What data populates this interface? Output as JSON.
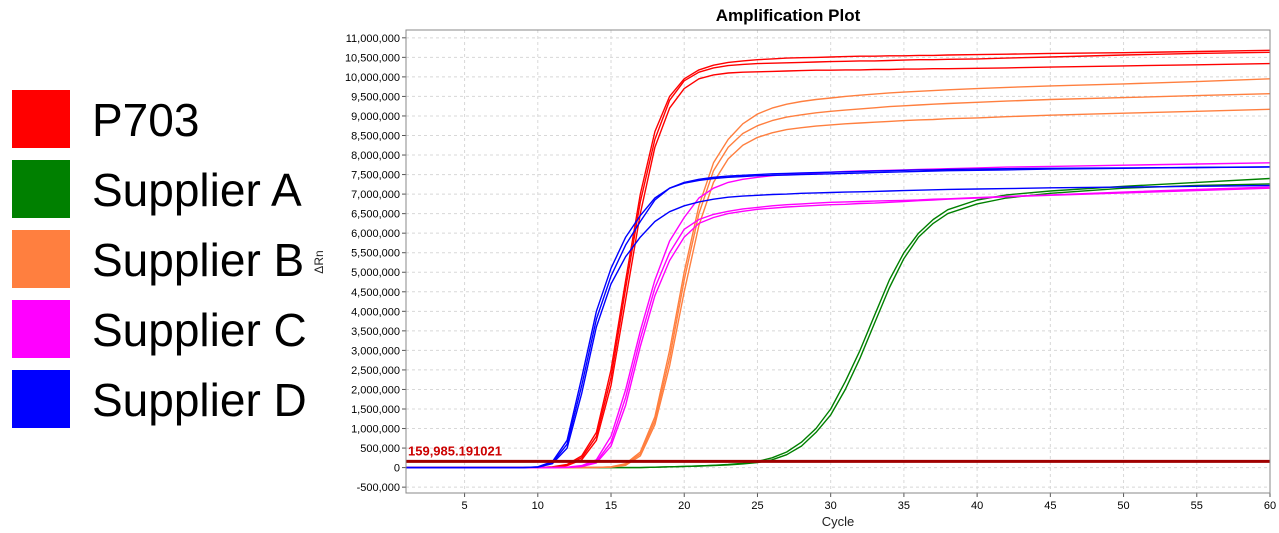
{
  "legend": {
    "items": [
      {
        "label": "P703",
        "color": "#ff0000"
      },
      {
        "label": "Supplier A",
        "color": "#008000"
      },
      {
        "label": "Supplier B",
        "color": "#ff7f3f"
      },
      {
        "label": "Supplier C",
        "color": "#ff00ff"
      },
      {
        "label": "Supplier D",
        "color": "#0000ff"
      }
    ]
  },
  "chart_data": {
    "type": "line",
    "title": "Amplification Plot",
    "xlabel": "Cycle",
    "ylabel": "ΔRn",
    "xlim": [
      1,
      60
    ],
    "ylim": [
      -650000,
      11200000
    ],
    "x_ticks": [
      5,
      10,
      15,
      20,
      25,
      30,
      35,
      40,
      45,
      50,
      55,
      60
    ],
    "x_tick_labels": [
      "5",
      "10",
      "15",
      "20",
      "25",
      "30",
      "35",
      "40",
      "45",
      "50",
      "55",
      "60"
    ],
    "y_ticks": [
      -500000,
      0,
      500000,
      1000000,
      1500000,
      2000000,
      2500000,
      3000000,
      3500000,
      4000000,
      4500000,
      5000000,
      5500000,
      6000000,
      6500000,
      7000000,
      7500000,
      8000000,
      8500000,
      9000000,
      9500000,
      10000000,
      10500000,
      11000000
    ],
    "y_tick_labels": [
      "-500,000",
      "0",
      "500,000",
      "1,000,000",
      "1,500,000",
      "2,000,000",
      "2,500,000",
      "3,000,000",
      "3,500,000",
      "4,000,000",
      "4,500,000",
      "5,000,000",
      "5,500,000",
      "6,000,000",
      "6,500,000",
      "7,000,000",
      "7,500,000",
      "8,000,000",
      "8,500,000",
      "9,000,000",
      "9,500,000",
      "10,000,000",
      "10,500,000",
      "11,000,000"
    ],
    "grid": true,
    "threshold": {
      "value": 159985.191021,
      "label": "159,985.191021",
      "color": "#a00000"
    },
    "x": [
      1,
      3,
      5,
      7,
      9,
      10,
      11,
      12,
      13,
      14,
      15,
      16,
      17,
      18,
      19,
      20,
      21,
      22,
      23,
      24,
      25,
      26,
      27,
      28,
      29,
      30,
      31,
      32,
      33,
      34,
      35,
      36,
      37,
      38,
      40,
      42,
      45,
      50,
      55,
      60
    ],
    "series": [
      {
        "group": "P703",
        "color": "#ff0000",
        "values": [
          0,
          0,
          0,
          0,
          0,
          0,
          20000,
          80000,
          300000,
          900000,
          2500000,
          4800000,
          7000000,
          8600000,
          9500000,
          9950000,
          10180000,
          10300000,
          10370000,
          10410000,
          10440000,
          10460000,
          10480000,
          10490000,
          10500000,
          10510000,
          10520000,
          10530000,
          10530000,
          10540000,
          10540000,
          10550000,
          10550000,
          10560000,
          10570000,
          10580000,
          10600000,
          10620000,
          10650000,
          10680000
        ]
      },
      {
        "group": "P703",
        "color": "#ff0000",
        "values": [
          0,
          0,
          0,
          0,
          0,
          0,
          15000,
          60000,
          250000,
          800000,
          2300000,
          4600000,
          6800000,
          8400000,
          9400000,
          9900000,
          10120000,
          10230000,
          10290000,
          10320000,
          10340000,
          10350000,
          10360000,
          10370000,
          10380000,
          10390000,
          10400000,
          10410000,
          10410000,
          10420000,
          10430000,
          10440000,
          10440000,
          10450000,
          10460000,
          10480000,
          10510000,
          10560000,
          10600000,
          10630000
        ]
      },
      {
        "group": "P703",
        "color": "#ff0000",
        "values": [
          0,
          0,
          0,
          0,
          0,
          0,
          10000,
          50000,
          200000,
          700000,
          2100000,
          4300000,
          6500000,
          8200000,
          9200000,
          9700000,
          9950000,
          10050000,
          10100000,
          10120000,
          10130000,
          10140000,
          10150000,
          10160000,
          10170000,
          10170000,
          10180000,
          10180000,
          10190000,
          10190000,
          10200000,
          10200000,
          10210000,
          10210000,
          10220000,
          10230000,
          10250000,
          10280000,
          10310000,
          10340000
        ]
      },
      {
        "group": "Supplier A",
        "color": "#008000",
        "values": [
          0,
          0,
          0,
          0,
          0,
          0,
          0,
          0,
          0,
          0,
          0,
          0,
          0,
          10000,
          20000,
          30000,
          40000,
          60000,
          80000,
          110000,
          160000,
          250000,
          400000,
          650000,
          1000000,
          1500000,
          2200000,
          3000000,
          3900000,
          4800000,
          5500000,
          6000000,
          6350000,
          6600000,
          6850000,
          6980000,
          7080000,
          7200000,
          7300000,
          7400000
        ]
      },
      {
        "group": "Supplier A",
        "color": "#008000",
        "values": [
          0,
          0,
          0,
          0,
          0,
          0,
          0,
          0,
          0,
          0,
          0,
          0,
          0,
          10000,
          20000,
          30000,
          40000,
          55000,
          70000,
          95000,
          130000,
          200000,
          330000,
          550000,
          900000,
          1350000,
          2000000,
          2800000,
          3700000,
          4600000,
          5350000,
          5900000,
          6250000,
          6500000,
          6750000,
          6900000,
          7020000,
          7150000,
          7220000,
          7260000
        ]
      },
      {
        "group": "Supplier B",
        "color": "#ff7f3f",
        "values": [
          0,
          0,
          0,
          0,
          0,
          0,
          0,
          0,
          0,
          5000,
          20000,
          100000,
          400000,
          1300000,
          3000000,
          5000000,
          6700000,
          7800000,
          8400000,
          8800000,
          9050000,
          9200000,
          9300000,
          9370000,
          9420000,
          9460000,
          9500000,
          9530000,
          9560000,
          9590000,
          9610000,
          9630000,
          9650000,
          9670000,
          9700000,
          9730000,
          9770000,
          9820000,
          9880000,
          9950000
        ]
      },
      {
        "group": "Supplier B",
        "color": "#ff7f3f",
        "values": [
          0,
          0,
          0,
          0,
          0,
          0,
          0,
          0,
          0,
          5000,
          15000,
          80000,
          350000,
          1200000,
          2800000,
          4800000,
          6500000,
          7600000,
          8200000,
          8550000,
          8750000,
          8880000,
          8970000,
          9030000,
          9080000,
          9120000,
          9150000,
          9180000,
          9210000,
          9240000,
          9260000,
          9280000,
          9300000,
          9320000,
          9350000,
          9380000,
          9420000,
          9470000,
          9520000,
          9570000
        ]
      },
      {
        "group": "Supplier B",
        "color": "#ff7f3f",
        "values": [
          0,
          0,
          0,
          0,
          0,
          0,
          0,
          0,
          0,
          5000,
          10000,
          60000,
          300000,
          1100000,
          2600000,
          4500000,
          6200000,
          7300000,
          7900000,
          8250000,
          8450000,
          8570000,
          8650000,
          8700000,
          8740000,
          8770000,
          8800000,
          8820000,
          8840000,
          8860000,
          8880000,
          8900000,
          8910000,
          8930000,
          8950000,
          8980000,
          9020000,
          9070000,
          9120000,
          9170000
        ]
      },
      {
        "group": "Supplier C",
        "color": "#ff00ff",
        "values": [
          0,
          0,
          0,
          0,
          0,
          0,
          0,
          10000,
          50000,
          200000,
          800000,
          2000000,
          3500000,
          4800000,
          5800000,
          6400000,
          6900000,
          7150000,
          7300000,
          7380000,
          7430000,
          7470000,
          7500000,
          7520000,
          7540000,
          7560000,
          7580000,
          7590000,
          7600000,
          7610000,
          7620000,
          7630000,
          7640000,
          7650000,
          7670000,
          7690000,
          7710000,
          7740000,
          7770000,
          7800000
        ]
      },
      {
        "group": "Supplier C",
        "color": "#ff00ff",
        "values": [
          0,
          0,
          0,
          0,
          0,
          0,
          0,
          5000,
          30000,
          150000,
          650000,
          1800000,
          3300000,
          4600000,
          5500000,
          6100000,
          6350000,
          6480000,
          6560000,
          6620000,
          6660000,
          6700000,
          6730000,
          6750000,
          6770000,
          6790000,
          6800000,
          6810000,
          6820000,
          6830000,
          6840000,
          6850000,
          6870000,
          6880000,
          6910000,
          6940000,
          6980000,
          7050000,
          7120000,
          7180000
        ]
      },
      {
        "group": "Supplier C",
        "color": "#ff00ff",
        "values": [
          0,
          0,
          0,
          0,
          0,
          0,
          0,
          5000,
          25000,
          120000,
          550000,
          1600000,
          3100000,
          4400000,
          5300000,
          5900000,
          6250000,
          6400000,
          6500000,
          6560000,
          6610000,
          6640000,
          6670000,
          6690000,
          6710000,
          6730000,
          6740000,
          6760000,
          6770000,
          6790000,
          6810000,
          6830000,
          6850000,
          6870000,
          6900000,
          6930000,
          6970000,
          7030000,
          7090000,
          7150000
        ]
      },
      {
        "group": "Supplier D",
        "color": "#0000ff",
        "values": [
          0,
          0,
          0,
          0,
          0,
          20000,
          150000,
          700000,
          2300000,
          4000000,
          5100000,
          5900000,
          6450000,
          6900000,
          7150000,
          7280000,
          7350000,
          7400000,
          7430000,
          7450000,
          7470000,
          7480000,
          7490000,
          7500000,
          7510000,
          7520000,
          7530000,
          7540000,
          7550000,
          7560000,
          7570000,
          7580000,
          7590000,
          7600000,
          7610000,
          7620000,
          7640000,
          7660000,
          7680000,
          7700000
        ]
      },
      {
        "group": "Supplier D",
        "color": "#0000ff",
        "values": [
          0,
          0,
          0,
          0,
          0,
          15000,
          120000,
          600000,
          2100000,
          3800000,
          4900000,
          5700000,
          6300000,
          6850000,
          7150000,
          7300000,
          7380000,
          7430000,
          7460000,
          7480000,
          7500000,
          7520000,
          7530000,
          7540000,
          7550000,
          7560000,
          7570000,
          7580000,
          7590000,
          7600000,
          7610000,
          7620000,
          7620000,
          7630000,
          7640000,
          7650000,
          7660000,
          7670000,
          7680000,
          7690000
        ]
      },
      {
        "group": "Supplier D",
        "color": "#0000ff",
        "values": [
          0,
          0,
          0,
          0,
          0,
          10000,
          100000,
          500000,
          1900000,
          3600000,
          4700000,
          5400000,
          5900000,
          6300000,
          6550000,
          6700000,
          6800000,
          6870000,
          6920000,
          6950000,
          6970000,
          6990000,
          7000000,
          7020000,
          7030000,
          7040000,
          7050000,
          7060000,
          7070000,
          7080000,
          7090000,
          7100000,
          7110000,
          7120000,
          7130000,
          7140000,
          7160000,
          7180000,
          7200000,
          7220000
        ]
      }
    ]
  }
}
